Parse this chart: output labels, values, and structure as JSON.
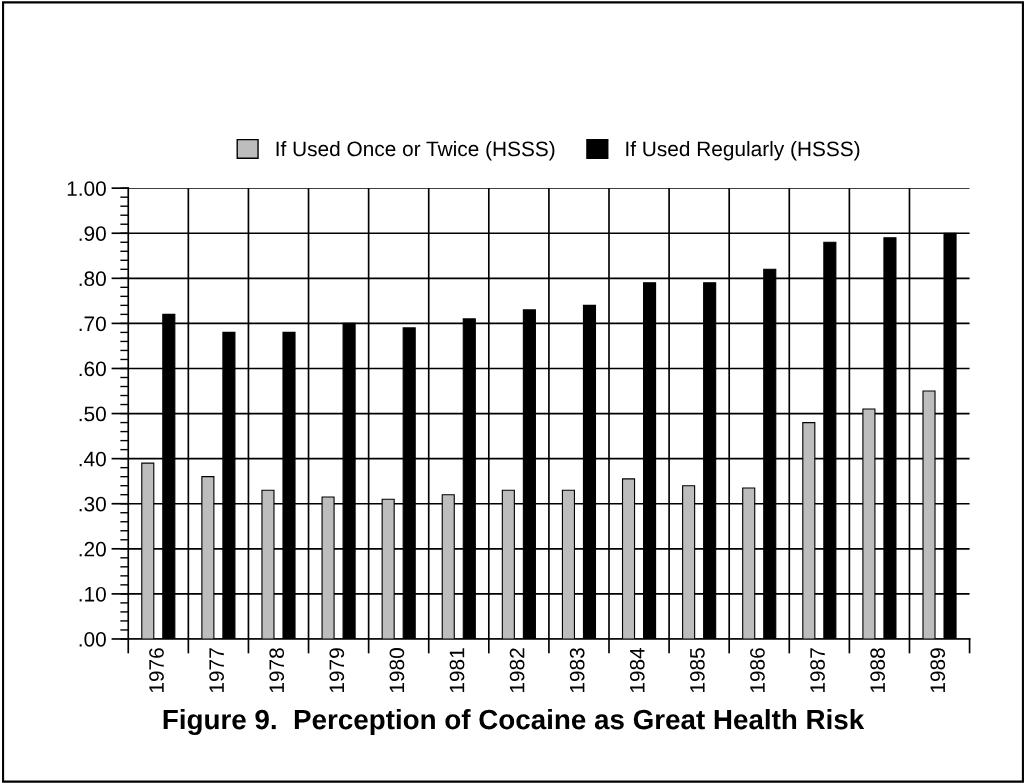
{
  "chart_data": {
    "type": "bar",
    "title": "Figure 9.  Perception of Cocaine as Great Health Risk",
    "categories": [
      "1976",
      "1977",
      "1978",
      "1979",
      "1980",
      "1981",
      "1982",
      "1983",
      "1984",
      "1985",
      "1986",
      "1987",
      "1988",
      "1989"
    ],
    "series": [
      {
        "name": "If Used Once or Twice (HSSS)",
        "color": "#bdbdbd",
        "values": [
          0.39,
          0.36,
          0.33,
          0.315,
          0.31,
          0.32,
          0.33,
          0.33,
          0.355,
          0.34,
          0.335,
          0.48,
          0.51,
          0.55
        ]
      },
      {
        "name": "If Used Regularly (HSSS)",
        "color": "#000000",
        "values": [
          0.72,
          0.68,
          0.68,
          0.7,
          0.69,
          0.71,
          0.73,
          0.74,
          0.79,
          0.79,
          0.82,
          0.88,
          0.89,
          0.9
        ]
      }
    ],
    "ylim": [
      0,
      1.0
    ],
    "yticks": [
      {
        "value": 0,
        "label": ".00"
      },
      {
        "value": 0.1,
        "label": ".10"
      },
      {
        "value": 0.2,
        "label": ".20"
      },
      {
        "value": 0.3,
        "label": ".30"
      },
      {
        "value": 0.4,
        "label": ".40"
      },
      {
        "value": 0.5,
        "label": ".50"
      },
      {
        "value": 0.6,
        "label": ".60"
      },
      {
        "value": 0.7,
        "label": ".70"
      },
      {
        "value": 0.8,
        "label": ".80"
      },
      {
        "value": 0.9,
        "label": ".90"
      },
      {
        "value": 1.0,
        "label": "1.00"
      }
    ],
    "grid": true,
    "legend": "top"
  }
}
